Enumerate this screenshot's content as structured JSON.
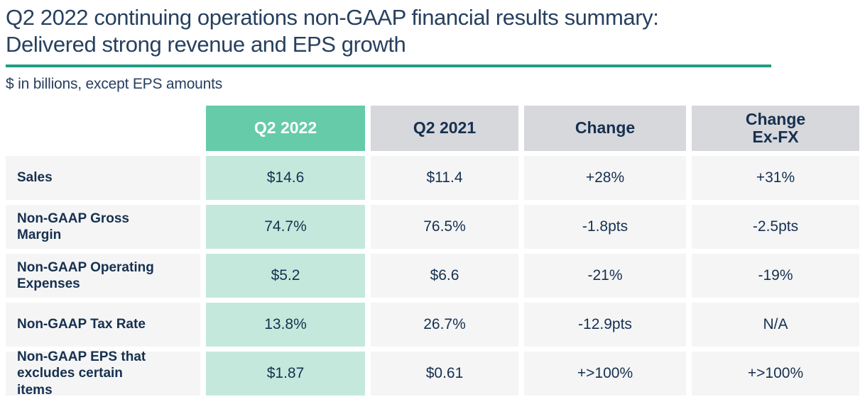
{
  "slide": {
    "title_line1": "Q2 2022 continuing operations non-GAAP financial results summary:",
    "title_line2": "Delivered strong revenue and EPS growth",
    "subtitle": "$ in billions, except EPS amounts"
  },
  "colors": {
    "title_navy": "#27405F",
    "table_navy": "#16304F",
    "accent_green": "#66CBA9",
    "light_green": "#C4E9DC",
    "header_gray": "#D6D8DC",
    "row_gray": "#F5F5F6",
    "underline_teal": "#1F9C80"
  },
  "chart_data": {
    "type": "table",
    "highlight_column": "Q2 2022",
    "headers": [
      "",
      "Q2 2022",
      "Q2 2021",
      "Change",
      "Change\nEx-FX"
    ],
    "rows": [
      {
        "label": "Sales",
        "values": [
          "$14.6",
          "$11.4",
          "+28%",
          "+31%"
        ]
      },
      {
        "label": "Non-GAAP Gross Margin",
        "values": [
          "74.7%",
          "76.5%",
          "-1.8pts",
          "-2.5pts"
        ]
      },
      {
        "label": "Non-GAAP Operating Expenses",
        "values": [
          "$5.2",
          "$6.6",
          "-21%",
          "-19%"
        ]
      },
      {
        "label": "Non-GAAP Tax Rate",
        "values": [
          "13.8%",
          "26.7%",
          "-12.9pts",
          "N/A"
        ]
      },
      {
        "label": "Non-GAAP EPS that excludes certain items",
        "values": [
          "$1.87",
          "$0.61",
          "+>100%",
          "+>100%"
        ]
      }
    ]
  }
}
